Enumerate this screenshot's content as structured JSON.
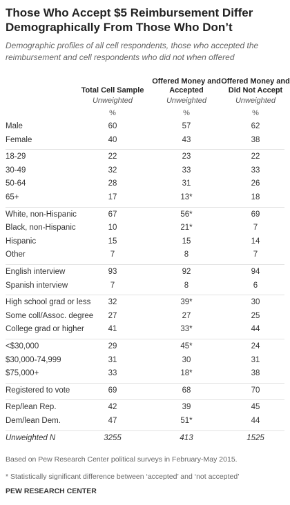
{
  "header": {
    "title": "Those Who Accept $5 Reimbursement Differ Demographically From Those Who Don’t",
    "subtitle": "Demographic profiles of all cell respondents, those who accepted the reimbursement and cell respondents who did not when offered"
  },
  "table": {
    "columns": [
      {
        "title": "Total Cell Sample",
        "note": "Unweighted",
        "unit": "%"
      },
      {
        "title": "Offered Money and Accepted",
        "note": "Unweighted",
        "unit": "%"
      },
      {
        "title": "Offered Money and Did Not Accept",
        "note": "Unweighted",
        "unit": "%"
      }
    ],
    "groups": [
      {
        "rows": [
          [
            "Male",
            "60",
            "57",
            "62"
          ],
          [
            "Female",
            "40",
            "43",
            "38"
          ]
        ]
      },
      {
        "rows": [
          [
            "18-29",
            "22",
            "23",
            "22"
          ],
          [
            "30-49",
            "32",
            "33",
            "33"
          ],
          [
            "50-64",
            "28",
            "31",
            "26"
          ],
          [
            "65+",
            "17",
            "13*",
            "18"
          ]
        ]
      },
      {
        "rows": [
          [
            "White, non-Hispanic",
            "67",
            "56*",
            "69"
          ],
          [
            "Black, non-Hispanic",
            "10",
            "21*",
            "7"
          ],
          [
            "Hispanic",
            "15",
            "15",
            "14"
          ],
          [
            "Other",
            "7",
            "8",
            "7"
          ]
        ]
      },
      {
        "rows": [
          [
            "English interview",
            "93",
            "92",
            "94"
          ],
          [
            "Spanish interview",
            "7",
            "8",
            "6"
          ]
        ]
      },
      {
        "rows": [
          [
            "High school grad or less",
            "32",
            "39*",
            "30"
          ],
          [
            "Some coll/Assoc. degree",
            "27",
            "27",
            "25"
          ],
          [
            "College grad or higher",
            "41",
            "33*",
            "44"
          ]
        ]
      },
      {
        "rows": [
          [
            "<$30,000",
            "29",
            "45*",
            "24"
          ],
          [
            "$30,000-74,999",
            "31",
            "30",
            "31"
          ],
          [
            "$75,000+",
            "33",
            "18*",
            "38"
          ]
        ]
      },
      {
        "rows": [
          [
            "Registered to vote",
            "69",
            "68",
            "70"
          ]
        ]
      },
      {
        "rows": [
          [
            "Rep/lean Rep.",
            "42",
            "39",
            "45"
          ],
          [
            "Dem/lean Dem.",
            "47",
            "51*",
            "44"
          ]
        ]
      }
    ],
    "total": [
      "Unweighted N",
      "3255",
      "413",
      "1525"
    ]
  },
  "footer": {
    "notes": [
      "Based on Pew Research Center political surveys in February-May 2015.",
      "* Statistically significant difference between ‘accepted’ and ‘not accepted’"
    ],
    "source": "PEW RESEARCH CENTER"
  }
}
